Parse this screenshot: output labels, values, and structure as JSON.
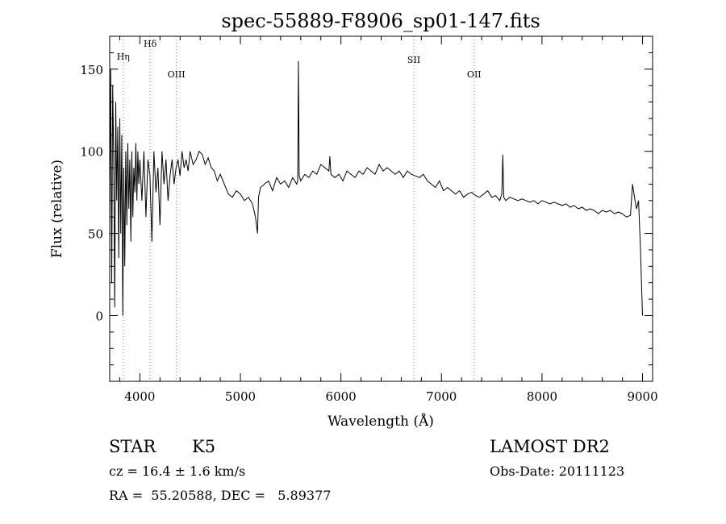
{
  "chart_data": {
    "type": "line",
    "title": "spec-55889-F8906_sp01-147.fits",
    "xlabel": "Wavelength (Å)",
    "ylabel": "Flux (relative)",
    "xlim": [
      3700,
      9100
    ],
    "ylim": [
      -40,
      170
    ],
    "xticks": [
      4000,
      5000,
      6000,
      7000,
      8000,
      9000
    ],
    "yticks": [
      0,
      50,
      100,
      150
    ],
    "grid": false,
    "line_color": "#000000",
    "marker_color": "#d46a6a",
    "lines": [
      {
        "label": "Hη",
        "wavelength": 3835
      },
      {
        "label": "Hδ",
        "wavelength": 4102
      },
      {
        "label": "OIII",
        "wavelength": 4363
      },
      {
        "label": "SII",
        "wavelength": 6725
      },
      {
        "label": "OII",
        "wavelength": 7325
      }
    ],
    "series": [
      {
        "x": [
          3700,
          3710,
          3720,
          3730,
          3740,
          3750,
          3760,
          3770,
          3780,
          3790,
          3800,
          3810,
          3820,
          3830,
          3840,
          3850,
          3860,
          3870,
          3880,
          3890,
          3900,
          3910,
          3920,
          3930,
          3940,
          3950,
          3960,
          3970,
          3980,
          3990,
          4000,
          4020,
          4040,
          4060,
          4080,
          4100,
          4120,
          4140,
          4160,
          4180,
          4200,
          4220,
          4240,
          4260,
          4280,
          4300,
          4320,
          4340,
          4360,
          4380,
          4400,
          4420,
          4440,
          4460,
          4480,
          4500,
          4530,
          4560,
          4590,
          4620,
          4650,
          4680,
          4710,
          4740,
          4770,
          4800,
          4840,
          4880,
          4920,
          4960,
          5000,
          5040,
          5080,
          5120,
          5150,
          5170,
          5180,
          5200,
          5240,
          5280,
          5320,
          5360,
          5400,
          5440,
          5480,
          5520,
          5560,
          5570,
          5577,
          5585,
          5600,
          5640,
          5680,
          5720,
          5760,
          5800,
          5840,
          5880,
          5890,
          5900,
          5940,
          5980,
          6020,
          6060,
          6100,
          6140,
          6180,
          6220,
          6260,
          6300,
          6340,
          6380,
          6420,
          6460,
          6500,
          6540,
          6580,
          6620,
          6660,
          6700,
          6740,
          6780,
          6820,
          6860,
          6900,
          6940,
          6980,
          7020,
          7060,
          7100,
          7140,
          7180,
          7220,
          7260,
          7300,
          7340,
          7380,
          7420,
          7460,
          7500,
          7540,
          7580,
          7600,
          7610,
          7620,
          7640,
          7680,
          7720,
          7760,
          7800,
          7840,
          7880,
          7920,
          7960,
          8000,
          8040,
          8080,
          8120,
          8160,
          8200,
          8240,
          8280,
          8320,
          8360,
          8400,
          8440,
          8480,
          8520,
          8560,
          8600,
          8640,
          8680,
          8720,
          8760,
          8800,
          8840,
          8880,
          8900,
          8920,
          8940,
          8960,
          8980,
          9000
        ],
        "y": [
          60,
          150,
          20,
          140,
          95,
          5,
          130,
          70,
          115,
          35,
          120,
          50,
          110,
          0,
          90,
          30,
          100,
          55,
          105,
          65,
          95,
          45,
          100,
          60,
          90,
          75,
          105,
          70,
          100,
          80,
          95,
          70,
          100,
          60,
          95,
          85,
          45,
          100,
          75,
          90,
          55,
          100,
          80,
          95,
          70,
          85,
          95,
          80,
          90,
          95,
          85,
          100,
          90,
          95,
          88,
          100,
          92,
          95,
          100,
          98,
          92,
          96,
          90,
          88,
          82,
          86,
          80,
          74,
          72,
          76,
          74,
          70,
          72,
          68,
          60,
          50,
          72,
          78,
          80,
          82,
          76,
          84,
          80,
          82,
          78,
          84,
          80,
          82,
          155,
          85,
          82,
          86,
          84,
          88,
          86,
          92,
          90,
          88,
          97,
          86,
          84,
          86,
          82,
          88,
          86,
          84,
          88,
          86,
          90,
          88,
          86,
          92,
          88,
          90,
          88,
          86,
          88,
          84,
          88,
          86,
          85,
          84,
          86,
          82,
          80,
          78,
          82,
          76,
          78,
          76,
          74,
          76,
          72,
          74,
          75,
          73,
          72,
          74,
          76,
          72,
          73,
          70,
          74,
          98,
          72,
          70,
          72,
          71,
          70,
          71,
          70,
          69,
          70,
          68,
          70,
          69,
          68,
          69,
          68,
          67,
          68,
          66,
          67,
          65,
          66,
          64,
          65,
          64,
          62,
          64,
          63,
          64,
          62,
          63,
          62,
          60,
          61,
          80,
          72,
          65,
          70,
          40,
          0
        ]
      }
    ]
  },
  "info": {
    "object_class": "STAR",
    "subclass": "K5",
    "survey": "LAMOST DR2",
    "cz": "cz = 16.4 ± 1.6 km/s",
    "obs_date": "Obs-Date: 20111123",
    "coords": "RA =  55.20588, DEC =   5.89377"
  }
}
